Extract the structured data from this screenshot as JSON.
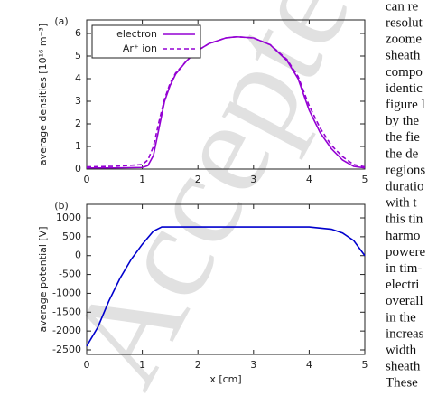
{
  "chart_data": [
    {
      "type": "line",
      "panel_label": "(a)",
      "ylabel": "average densities [10¹⁶ m⁻³]",
      "xlim": [
        0,
        5
      ],
      "xticks": [
        0,
        1,
        2,
        3,
        4,
        5
      ],
      "ylim": [
        0,
        6.6
      ],
      "yticks": [
        0,
        1,
        2,
        3,
        4,
        5,
        6
      ],
      "legend": "upper left",
      "x": [
        0,
        0.5,
        1,
        1.1,
        1.2,
        1.3,
        1.4,
        1.5,
        1.6,
        1.8,
        2,
        2.2,
        2.5,
        2.7,
        3,
        3.3,
        3.6,
        3.8,
        4,
        4.2,
        4.4,
        4.6,
        4.8,
        5
      ],
      "series": [
        {
          "name": "electron",
          "color": "#9400d3",
          "linestyle": "solid",
          "values": [
            0.05,
            0.05,
            0.07,
            0.15,
            0.6,
            1.8,
            3.0,
            3.7,
            4.2,
            4.8,
            5.25,
            5.55,
            5.8,
            5.85,
            5.8,
            5.5,
            4.8,
            4.0,
            2.6,
            1.6,
            0.9,
            0.4,
            0.12,
            0.05
          ]
        },
        {
          "name": "Ar⁺ ion",
          "color": "#9400d3",
          "linestyle": "dashed",
          "values": [
            0.1,
            0.12,
            0.2,
            0.4,
            1.0,
            2.1,
            3.1,
            3.8,
            4.25,
            4.8,
            5.25,
            5.55,
            5.8,
            5.85,
            5.8,
            5.5,
            4.85,
            4.1,
            2.8,
            1.8,
            1.05,
            0.55,
            0.2,
            0.1
          ]
        }
      ]
    },
    {
      "type": "line",
      "panel_label": "(b)",
      "ylabel": "average potential [V]",
      "xlabel": "x [cm]",
      "xlim": [
        0,
        5
      ],
      "xticks": [
        0,
        1,
        2,
        3,
        4,
        5
      ],
      "ylim": [
        -2620,
        1360
      ],
      "yticks": [
        -2500,
        -2000,
        -1500,
        -1000,
        -500,
        0,
        500,
        1000
      ],
      "x": [
        0,
        0.2,
        0.4,
        0.6,
        0.8,
        1.0,
        1.2,
        1.35,
        2,
        3,
        4,
        4.4,
        4.6,
        4.8,
        5
      ],
      "series": [
        {
          "color": "#0000cd",
          "linestyle": "solid",
          "values": [
            -2400,
            -1900,
            -1200,
            -600,
            -100,
            300,
            650,
            760,
            760,
            760,
            760,
            700,
            600,
            400,
            0
          ]
        }
      ]
    }
  ],
  "watermark": "Accepted",
  "body_text": {
    "lines": [
      "can re",
      "resolut",
      "zoome",
      "sheath",
      "compo",
      "identic",
      "figure l",
      "by the",
      "the fie",
      "the de",
      "regions",
      "duratio",
      "with t",
      "this tin",
      "harmo",
      "powere",
      "in tim-",
      "electri",
      "overall",
      "in the",
      "increas",
      "width",
      "sheath",
      "These"
    ]
  }
}
